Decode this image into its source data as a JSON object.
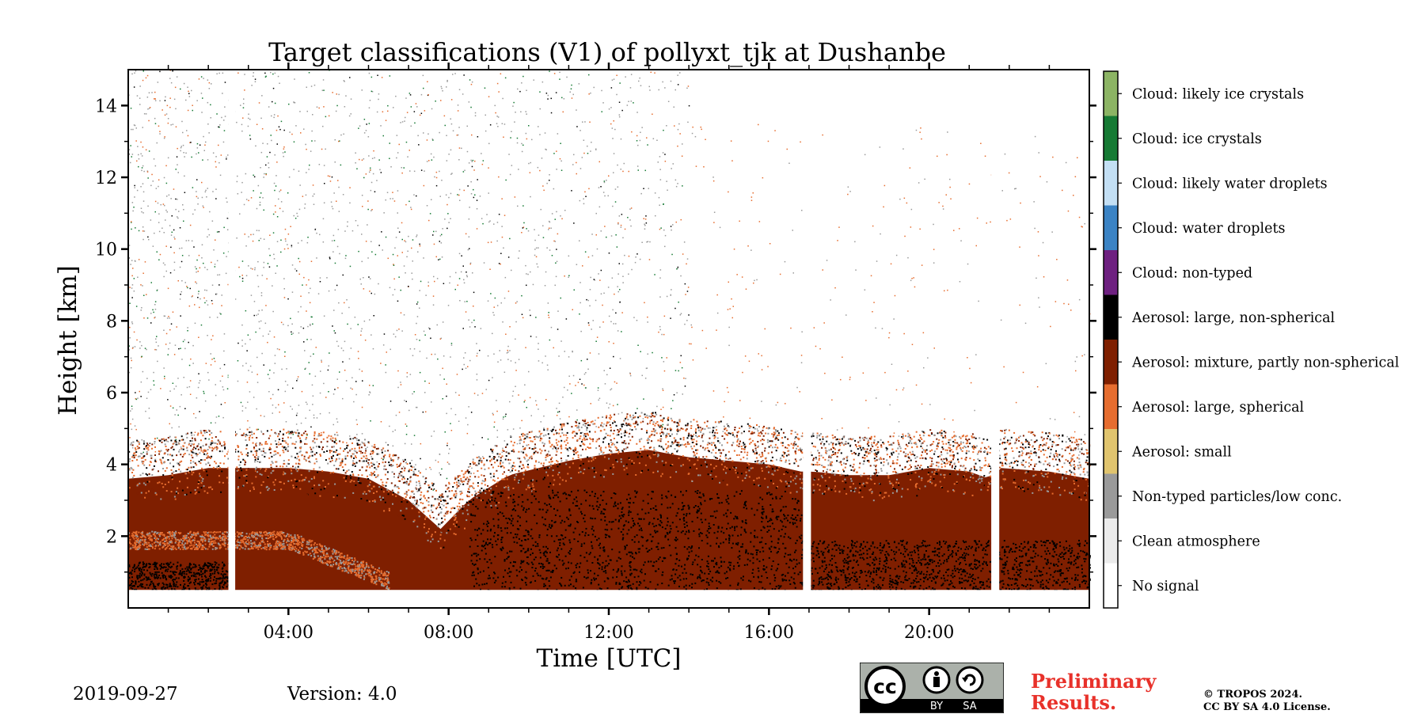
{
  "chart_data": {
    "type": "heatmap",
    "title": "Target classifications (V1) of pollyxt_tjk at Dushanbe",
    "xlabel": "Time [UTC]",
    "ylabel": "Height [km]",
    "xlim": [
      0,
      24
    ],
    "ylim": [
      0,
      15
    ],
    "x_ticks": [
      {
        "value": 4,
        "label": "04:00"
      },
      {
        "value": 8,
        "label": "08:00"
      },
      {
        "value": 12,
        "label": "12:00"
      },
      {
        "value": 16,
        "label": "16:00"
      },
      {
        "value": 20,
        "label": "20:00"
      }
    ],
    "y_ticks": [
      {
        "value": 2,
        "label": "2"
      },
      {
        "value": 4,
        "label": "4"
      },
      {
        "value": 6,
        "label": "6"
      },
      {
        "value": 8,
        "label": "8"
      },
      {
        "value": 10,
        "label": "10"
      },
      {
        "value": 12,
        "label": "12"
      },
      {
        "value": 14,
        "label": "14"
      }
    ],
    "data_gaps_utc": [
      [
        2.5,
        2.67
      ],
      [
        16.85,
        17.05
      ],
      [
        21.55,
        21.75
      ]
    ],
    "min_height_km": 0.5,
    "aerosol_top_km": [
      [
        0,
        4.2
      ],
      [
        1,
        4.3
      ],
      [
        2,
        4.5
      ],
      [
        3,
        4.5
      ],
      [
        4,
        4.5
      ],
      [
        5,
        4.4
      ],
      [
        6,
        4.2
      ],
      [
        7,
        3.6
      ],
      [
        7.8,
        2.8
      ],
      [
        8.5,
        3.6
      ],
      [
        9.5,
        4.3
      ],
      [
        11,
        4.7
      ],
      [
        12,
        4.9
      ],
      [
        13,
        5.0
      ],
      [
        14,
        4.8
      ],
      [
        15,
        4.7
      ],
      [
        16,
        4.6
      ],
      [
        16.8,
        4.4
      ],
      [
        17.1,
        4.4
      ],
      [
        18,
        4.3
      ],
      [
        19,
        4.3
      ],
      [
        20,
        4.5
      ],
      [
        21,
        4.4
      ],
      [
        21.5,
        4.2
      ],
      [
        21.8,
        4.5
      ],
      [
        23,
        4.4
      ],
      [
        24,
        4.2
      ]
    ],
    "legend": [
      {
        "label": "Cloud: likely ice crystals",
        "color": "#8cb464"
      },
      {
        "label": "Cloud: ice crystals",
        "color": "#167a34"
      },
      {
        "label": "Cloud: likely water droplets",
        "color": "#c3dff4"
      },
      {
        "label": "Cloud: water droplets",
        "color": "#3b83c4"
      },
      {
        "label": "Cloud: non-typed",
        "color": "#6e2080"
      },
      {
        "label": "Aerosol: large, non-spherical",
        "color": "#000000"
      },
      {
        "label": "Aerosol: mixture, partly non-spherical",
        "color": "#7f1f00"
      },
      {
        "label": "Aerosol: large, spherical",
        "color": "#e66d2f"
      },
      {
        "label": "Aerosol: small",
        "color": "#e0c46e"
      },
      {
        "label": "Non-typed particles/low conc.",
        "color": "#9a9a9a"
      },
      {
        "label": "Clean atmosphere",
        "color": "#ebebeb"
      },
      {
        "label": "No signal",
        "color": "#ffffff"
      }
    ]
  },
  "footer": {
    "date": "2019-09-27",
    "version": "Version: 4.0",
    "preliminary_line1": "Preliminary",
    "preliminary_line2": "Results.",
    "copyright_line1": "© TROPOS 2024.",
    "copyright_line2": "CC BY SA 4.0 License.",
    "license_badge": {
      "cc": "cc",
      "by": "BY",
      "sa": "SA"
    }
  }
}
